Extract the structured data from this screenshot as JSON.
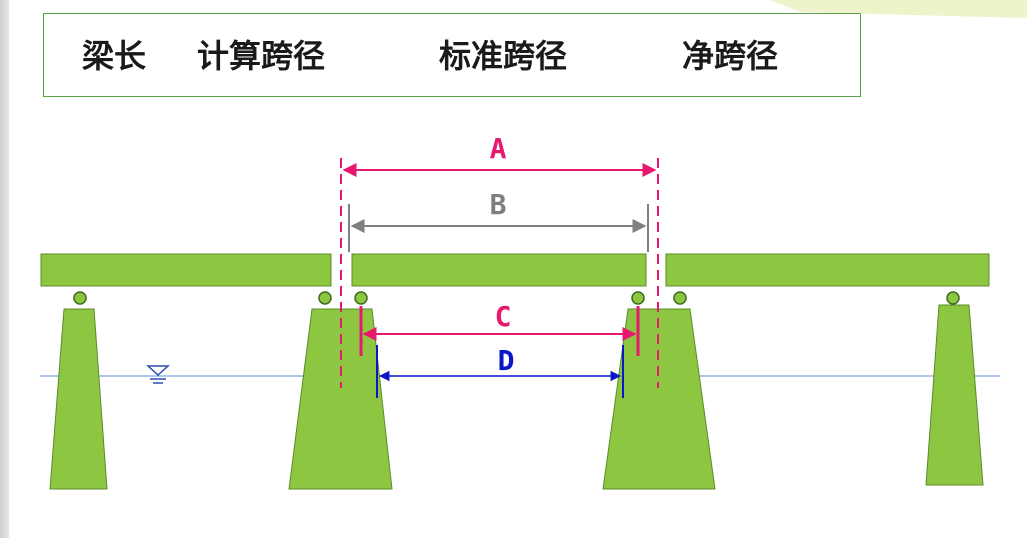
{
  "terms": [
    "梁长",
    "计算跨径",
    "标准跨径",
    "净跨径"
  ],
  "dimensions": [
    {
      "label": "A",
      "color": "#e8176f"
    },
    {
      "label": "B",
      "color": "#7f7f7f"
    },
    {
      "label": "C",
      "color": "#e8176f"
    },
    {
      "label": "D",
      "color": "#0a16c8"
    }
  ],
  "colors": {
    "structure": "#8dc641",
    "structure_edge": "#5b8c2a",
    "water_line": "#5b8fd0",
    "box_border": "#5aa04a"
  },
  "icons": {
    "water_level": "water-level-icon"
  }
}
